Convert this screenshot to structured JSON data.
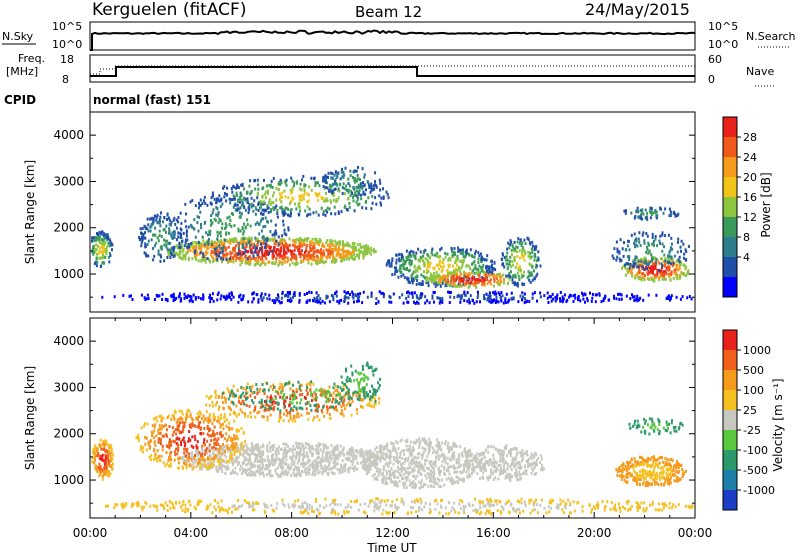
{
  "header": {
    "station": "Kerguelen (fitACF)",
    "beam": "Beam 12",
    "date": "24/May/2015"
  },
  "params": {
    "nsky_label": "N.Sky",
    "nsearch_label": "N.Search",
    "freq_label_top": "Freq.",
    "freq_label_unit": "[MHz]",
    "nave_label": "Nave",
    "cpid_label": "CPID",
    "cpid_value": "normal (fast) 151",
    "noise_ticks": [
      "10^5",
      "10^0"
    ],
    "noise_ticks_right": [
      "10^5",
      "10^0"
    ],
    "freq_ticks": [
      "18",
      "8"
    ],
    "nave_ticks": [
      "60",
      "0"
    ]
  },
  "chart_data": [
    {
      "type": "heatmap",
      "title": "",
      "ylabel": "Slant Range [km]",
      "ylim": [
        180,
        4500
      ],
      "yticks": [
        "4000",
        "3000",
        "2000",
        "1000"
      ],
      "colorbar": {
        "label": "Power [dB]",
        "ticks": [
          "28",
          "24",
          "20",
          "16",
          "12",
          "8",
          "4"
        ],
        "colors": [
          "#0000ff",
          "#1f4fa8",
          "#2e7d8c",
          "#3a9a5a",
          "#8cc63f",
          "#f0c419",
          "#f59a1b",
          "#f05a1a",
          "#e8221a"
        ]
      }
    },
    {
      "type": "heatmap",
      "title": "",
      "ylabel": "Slant Range [km]",
      "xlabel": "Time UT",
      "ylim": [
        180,
        4500
      ],
      "yticks": [
        "4000",
        "3000",
        "2000",
        "1000"
      ],
      "xticks": [
        "00:00",
        "04:00",
        "08:00",
        "12:00",
        "16:00",
        "20:00",
        "00:00"
      ],
      "colorbar": {
        "label": "Velocity [m s⁻¹]",
        "ticks": [
          "1000",
          "500",
          "100",
          "25",
          "-25",
          "-100",
          "-500",
          "-1000"
        ],
        "colors": [
          "#1a3fc6",
          "#1f7fa8",
          "#2a9a6a",
          "#5bc63f",
          "#c8c8c0",
          "#f5c020",
          "#f59a1b",
          "#f0601a",
          "#e8221a"
        ]
      }
    }
  ],
  "colors": {
    "gray_scatter": "#c8c8c0",
    "axis": "#000000"
  }
}
